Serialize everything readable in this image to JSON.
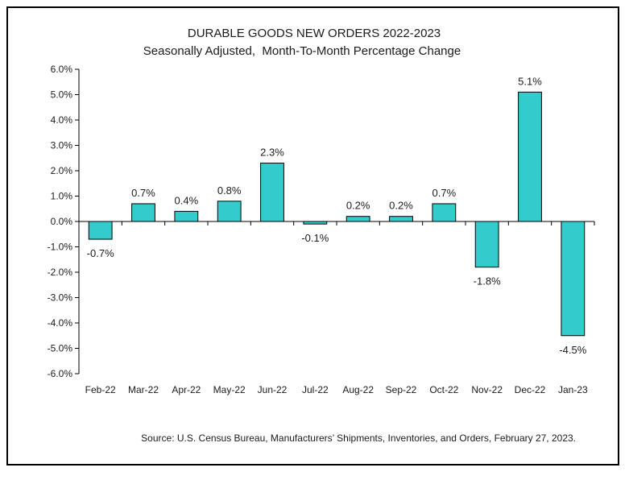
{
  "chart_data": {
    "type": "bar",
    "title": "DURABLE GOODS NEW ORDERS 2022-2023",
    "subtitle": "Seasonally Adjusted,  Month-To-Month Percentage Change",
    "categories": [
      "Feb-22",
      "Mar-22",
      "Apr-22",
      "May-22",
      "Jun-22",
      "Jul-22",
      "Aug-22",
      "Sep-22",
      "Oct-22",
      "Nov-22",
      "Dec-22",
      "Jan-23"
    ],
    "values": [
      -0.7,
      0.7,
      0.4,
      0.8,
      2.3,
      -0.1,
      0.2,
      0.2,
      0.7,
      -1.8,
      5.1,
      -4.5
    ],
    "data_labels": [
      "-0.7%",
      "0.7%",
      "0.4%",
      "0.8%",
      "2.3%",
      "-0.1%",
      "0.2%",
      "0.2%",
      "0.7%",
      "-1.8%",
      "5.1%",
      "-4.5%"
    ],
    "ylim": [
      -6,
      6
    ],
    "yticks": [
      6,
      5,
      4,
      3,
      2,
      1,
      0,
      -1,
      -2,
      -3,
      -4,
      -5,
      -6
    ],
    "ytick_labels": [
      "6.0%",
      "5.0%",
      "4.0%",
      "3.0%",
      "2.0%",
      "1.0%",
      "0.0%",
      "-1.0%",
      "-2.0%",
      "-3.0%",
      "-4.0%",
      "-5.0%",
      "-6.0%"
    ],
    "xlabel": "",
    "ylabel": "",
    "grid": false,
    "bar_color": "#33CCCC",
    "source": "Source: U.S. Census Bureau, Manufacturers’ Shipments, Inventories, and Orders, February 27, 2023."
  }
}
